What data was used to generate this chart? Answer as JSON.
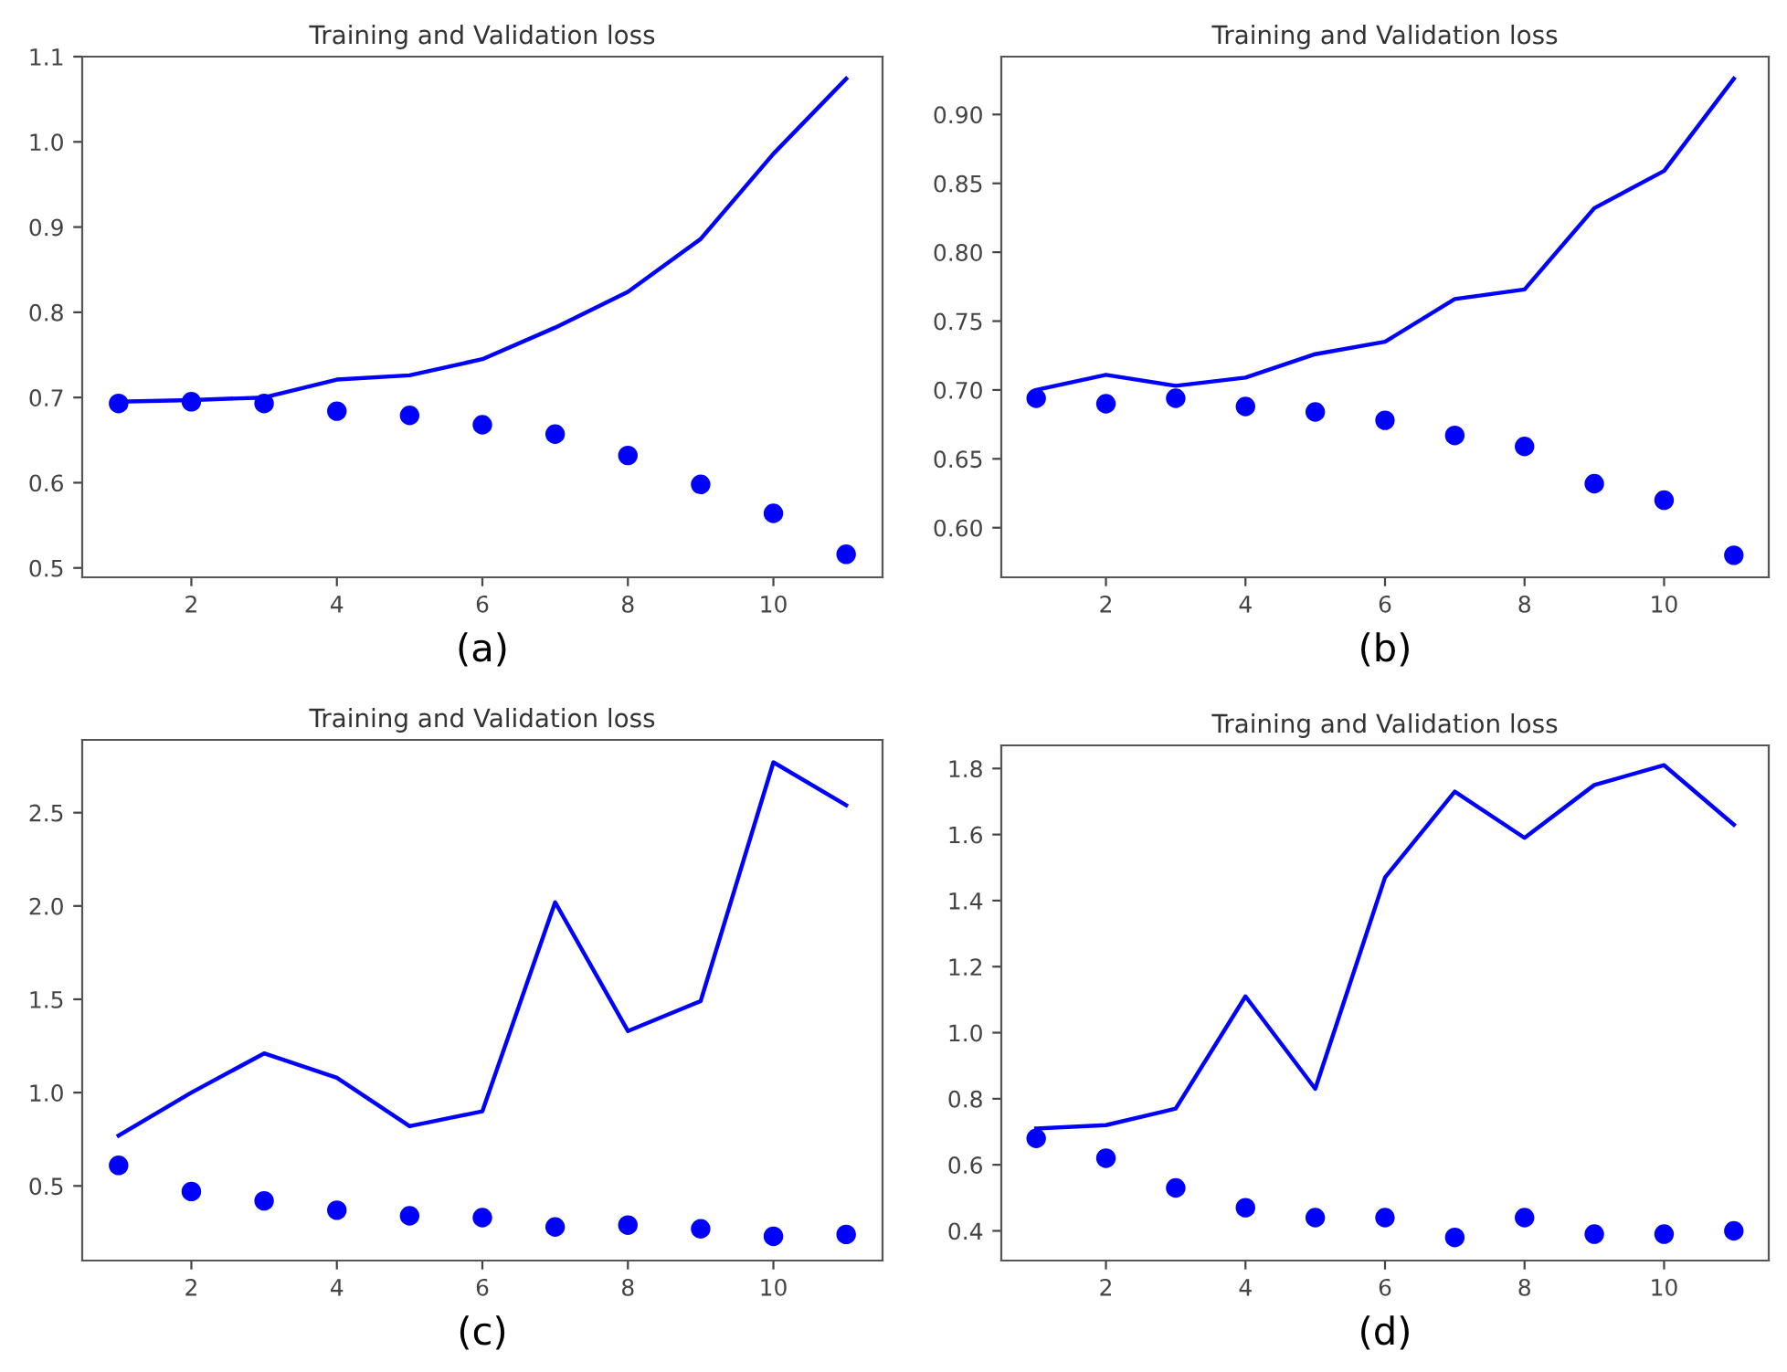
{
  "chart_data": [
    {
      "type": "line",
      "title": "Training and Validation loss",
      "xlabel": "(a)",
      "x": [
        1,
        2,
        3,
        4,
        5,
        6,
        7,
        8,
        9,
        10,
        11
      ],
      "xlim": [
        0.5,
        11.5
      ],
      "xticks": [
        2,
        4,
        6,
        8,
        10
      ],
      "ylim": [
        0.489,
        1.1
      ],
      "yticks": [
        0.5,
        0.6,
        0.7,
        0.8,
        0.9,
        {
          "value": 1.0,
          "label": "1.0"
        },
        1.1
      ],
      "grid": false,
      "series": [
        {
          "type": "scatter",
          "marker": "circle",
          "color": "#0000ff",
          "values": [
            0.693,
            0.695,
            0.693,
            0.684,
            0.679,
            0.668,
            0.657,
            0.632,
            0.598,
            0.564,
            0.516
          ]
        },
        {
          "line_style": "solid",
          "color": "#0000ff",
          "values": [
            0.695,
            0.697,
            0.7,
            0.721,
            0.726,
            0.745,
            0.782,
            0.824,
            0.886,
            0.986,
            1.074
          ]
        }
      ]
    },
    {
      "type": "line",
      "title": "Training and Validation loss",
      "xlabel": "(b)",
      "x": [
        1,
        2,
        3,
        4,
        5,
        6,
        7,
        8,
        9,
        10,
        11
      ],
      "xlim": [
        0.5,
        11.5
      ],
      "xticks": [
        2,
        4,
        6,
        8,
        10
      ],
      "ylim": [
        0.564,
        0.942
      ],
      "yticks": [
        {
          "value": 0.6,
          "label": "0.60"
        },
        {
          "value": 0.65,
          "label": "0.65"
        },
        {
          "value": 0.7,
          "label": "0.70"
        },
        {
          "value": 0.75,
          "label": "0.75"
        },
        {
          "value": 0.8,
          "label": "0.80"
        },
        {
          "value": 0.85,
          "label": "0.85"
        },
        {
          "value": 0.9,
          "label": "0.90"
        }
      ],
      "grid": false,
      "series": [
        {
          "type": "scatter",
          "marker": "circle",
          "color": "#0000ff",
          "values": [
            0.694,
            0.69,
            0.694,
            0.688,
            0.684,
            0.678,
            0.667,
            0.659,
            0.632,
            0.62,
            0.58
          ]
        },
        {
          "line_style": "solid",
          "color": "#0000ff",
          "values": [
            0.7,
            0.711,
            0.703,
            0.709,
            0.726,
            0.735,
            0.766,
            0.773,
            0.832,
            0.859,
            0.926
          ]
        }
      ]
    },
    {
      "type": "line",
      "title": "Training and Validation loss",
      "xlabel": "(c)",
      "x": [
        1,
        2,
        3,
        4,
        5,
        6,
        7,
        8,
        9,
        10,
        11
      ],
      "xlim": [
        0.5,
        11.5
      ],
      "xticks": [
        2,
        4,
        6,
        8,
        10
      ],
      "ylim": [
        0.1,
        2.89
      ],
      "yticks": [
        0.5,
        {
          "value": 1.0,
          "label": "1.0"
        },
        1.5,
        {
          "value": 2.0,
          "label": "2.0"
        },
        2.5
      ],
      "grid": false,
      "series": [
        {
          "type": "scatter",
          "marker": "circle",
          "color": "#0000ff",
          "values": [
            0.61,
            0.47,
            0.42,
            0.37,
            0.34,
            0.33,
            0.28,
            0.29,
            0.27,
            0.23,
            0.24
          ]
        },
        {
          "line_style": "solid",
          "color": "#0000ff",
          "values": [
            0.77,
            1.0,
            1.21,
            1.08,
            0.82,
            0.9,
            2.02,
            1.33,
            1.49,
            2.77,
            2.54
          ]
        }
      ]
    },
    {
      "type": "line",
      "title": "Training and Validation loss",
      "xlabel": "(d)",
      "x": [
        1,
        2,
        3,
        4,
        5,
        6,
        7,
        8,
        9,
        10,
        11
      ],
      "xlim": [
        0.5,
        11.5
      ],
      "xticks": [
        2,
        4,
        6,
        8,
        10
      ],
      "ylim": [
        0.31,
        1.87
      ],
      "yticks": [
        0.4,
        0.6,
        0.8,
        {
          "value": 1.0,
          "label": "1.0"
        },
        1.2,
        1.4,
        1.6,
        1.8
      ],
      "grid": false,
      "series": [
        {
          "type": "scatter",
          "marker": "circle",
          "color": "#0000ff",
          "values": [
            0.68,
            0.62,
            0.53,
            0.47,
            0.44,
            0.44,
            0.38,
            0.44,
            0.39,
            0.39,
            0.4
          ]
        },
        {
          "line_style": "solid",
          "color": "#0000ff",
          "values": [
            0.71,
            0.72,
            0.77,
            1.11,
            0.83,
            1.47,
            1.73,
            1.59,
            1.75,
            1.81,
            1.63
          ]
        }
      ]
    }
  ]
}
